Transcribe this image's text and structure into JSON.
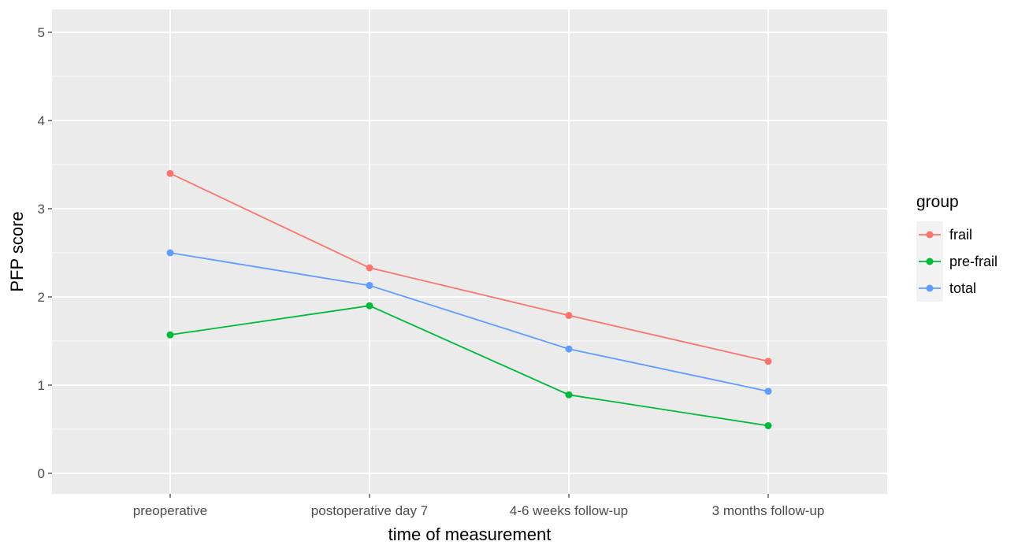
{
  "chart_data": {
    "type": "line",
    "title": "",
    "xlabel": "time of measurement",
    "ylabel": "PFP score",
    "categories": [
      "preoperative",
      "postoperative day 7",
      "4-6 weeks follow-up",
      "3 months follow-up"
    ],
    "ylim": [
      0,
      5
    ],
    "yticks": [
      0,
      1,
      2,
      3,
      4,
      5
    ],
    "grid": true,
    "legend": {
      "title": "group",
      "placement": "right"
    },
    "series": [
      {
        "name": "frail",
        "color": "#F8766D",
        "values": [
          3.4,
          2.33,
          1.79,
          1.27
        ]
      },
      {
        "name": "pre-frail",
        "color": "#00BA38",
        "values": [
          1.57,
          1.9,
          0.89,
          0.54
        ]
      },
      {
        "name": "total",
        "color": "#619CFF",
        "values": [
          2.5,
          2.13,
          1.41,
          0.93
        ]
      }
    ]
  }
}
